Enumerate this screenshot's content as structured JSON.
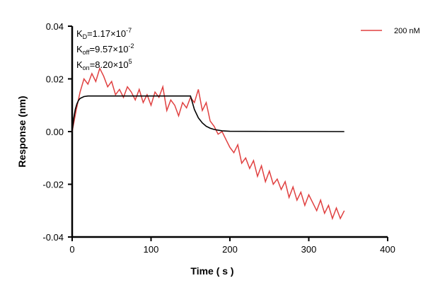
{
  "chart_data": {
    "type": "line",
    "xlabel": "Time ( s )",
    "ylabel": "Response (nm)",
    "xlim": [
      0,
      400
    ],
    "ylim": [
      -0.04,
      0.04
    ],
    "xticks": [
      "0",
      "100",
      "200",
      "300",
      "400"
    ],
    "yticks": [
      "-0.04",
      "-0.02",
      "0.00",
      "0.02",
      "0.04"
    ],
    "grid": false,
    "legend_position": "top-right",
    "annotations": {
      "kd": {
        "label": "K",
        "sub": "D",
        "value": "=1.17×10",
        "exp": "-7"
      },
      "koff": {
        "label": "K",
        "sub": "off",
        "value": "=9.57×10",
        "exp": "-2"
      },
      "kon": {
        "label": "K",
        "sub": "on",
        "value": "=8.20×10",
        "exp": "5"
      }
    },
    "series": [
      {
        "name": "200 nM",
        "color": "#e04040",
        "x": [
          0,
          5,
          10,
          15,
          20,
          25,
          30,
          35,
          40,
          45,
          50,
          55,
          60,
          65,
          70,
          75,
          80,
          85,
          90,
          95,
          100,
          105,
          110,
          115,
          120,
          125,
          130,
          135,
          140,
          145,
          150,
          155,
          160,
          165,
          170,
          175,
          180,
          185,
          190,
          195,
          200,
          205,
          210,
          215,
          220,
          225,
          230,
          235,
          240,
          245,
          250,
          255,
          260,
          265,
          270,
          275,
          280,
          285,
          290,
          295,
          300,
          305,
          310,
          315,
          320,
          325,
          330,
          335,
          340,
          345
        ],
        "y": [
          0.0,
          0.008,
          0.015,
          0.02,
          0.018,
          0.022,
          0.019,
          0.024,
          0.021,
          0.017,
          0.019,
          0.014,
          0.016,
          0.013,
          0.017,
          0.015,
          0.012,
          0.016,
          0.011,
          0.014,
          0.01,
          0.015,
          0.013,
          0.017,
          0.008,
          0.012,
          0.01,
          0.006,
          0.011,
          0.009,
          0.013,
          0.011,
          0.016,
          0.008,
          0.011,
          0.004,
          0.002,
          -0.001,
          0.0,
          -0.003,
          -0.006,
          -0.008,
          -0.005,
          -0.012,
          -0.01,
          -0.014,
          -0.011,
          -0.017,
          -0.013,
          -0.019,
          -0.015,
          -0.02,
          -0.018,
          -0.022,
          -0.019,
          -0.025,
          -0.021,
          -0.026,
          -0.023,
          -0.028,
          -0.024,
          -0.027,
          -0.03,
          -0.026,
          -0.031,
          -0.028,
          -0.033,
          -0.029,
          -0.033,
          -0.03
        ]
      },
      {
        "color": "#000000",
        "x": [
          0,
          2,
          4,
          6,
          8,
          10,
          15,
          20,
          150,
          155,
          160,
          165,
          170,
          175,
          180,
          190,
          200,
          345
        ],
        "y": [
          0,
          0.005,
          0.0085,
          0.0105,
          0.0118,
          0.0126,
          0.0133,
          0.0135,
          0.0135,
          0.0084,
          0.0052,
          0.0033,
          0.002,
          0.0013,
          0.0008,
          0.0003,
          0.0001,
          0
        ]
      }
    ]
  }
}
